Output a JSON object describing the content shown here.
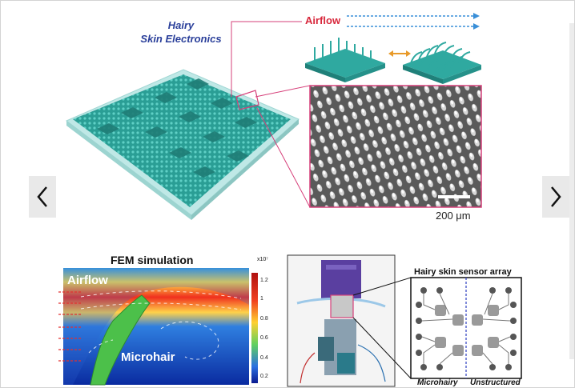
{
  "figure": {
    "title_line1": "Hairy",
    "title_line2": "Skin Electronics",
    "airflow_label": "Airflow",
    "scale_bar_label": "200 μm",
    "fem_title": "FEM simulation",
    "fem_airflow_label": "Airflow",
    "fem_microhair_label": "Microhair",
    "colorbar_exponent": "x10⁷",
    "colorbar_ticks": [
      "1.2",
      "1",
      "0.8",
      "0.6",
      "0.4",
      "0.2"
    ],
    "sensor_title": "Hairy skin sensor array",
    "sensor_bottom_left": "Microhairy",
    "sensor_bottom_right": "Unstructured"
  },
  "nav": {
    "prev_icon": "chevron-left-icon",
    "next_icon": "chevron-right-icon"
  },
  "colors": {
    "teal": "#2fa9a0",
    "title_blue": "#2a3f9a",
    "airflow_red": "#d8283c",
    "arrow_blue": "#3a8fd8",
    "highlight_pink": "#d6407a",
    "arrow_orange": "#e89a2a"
  }
}
